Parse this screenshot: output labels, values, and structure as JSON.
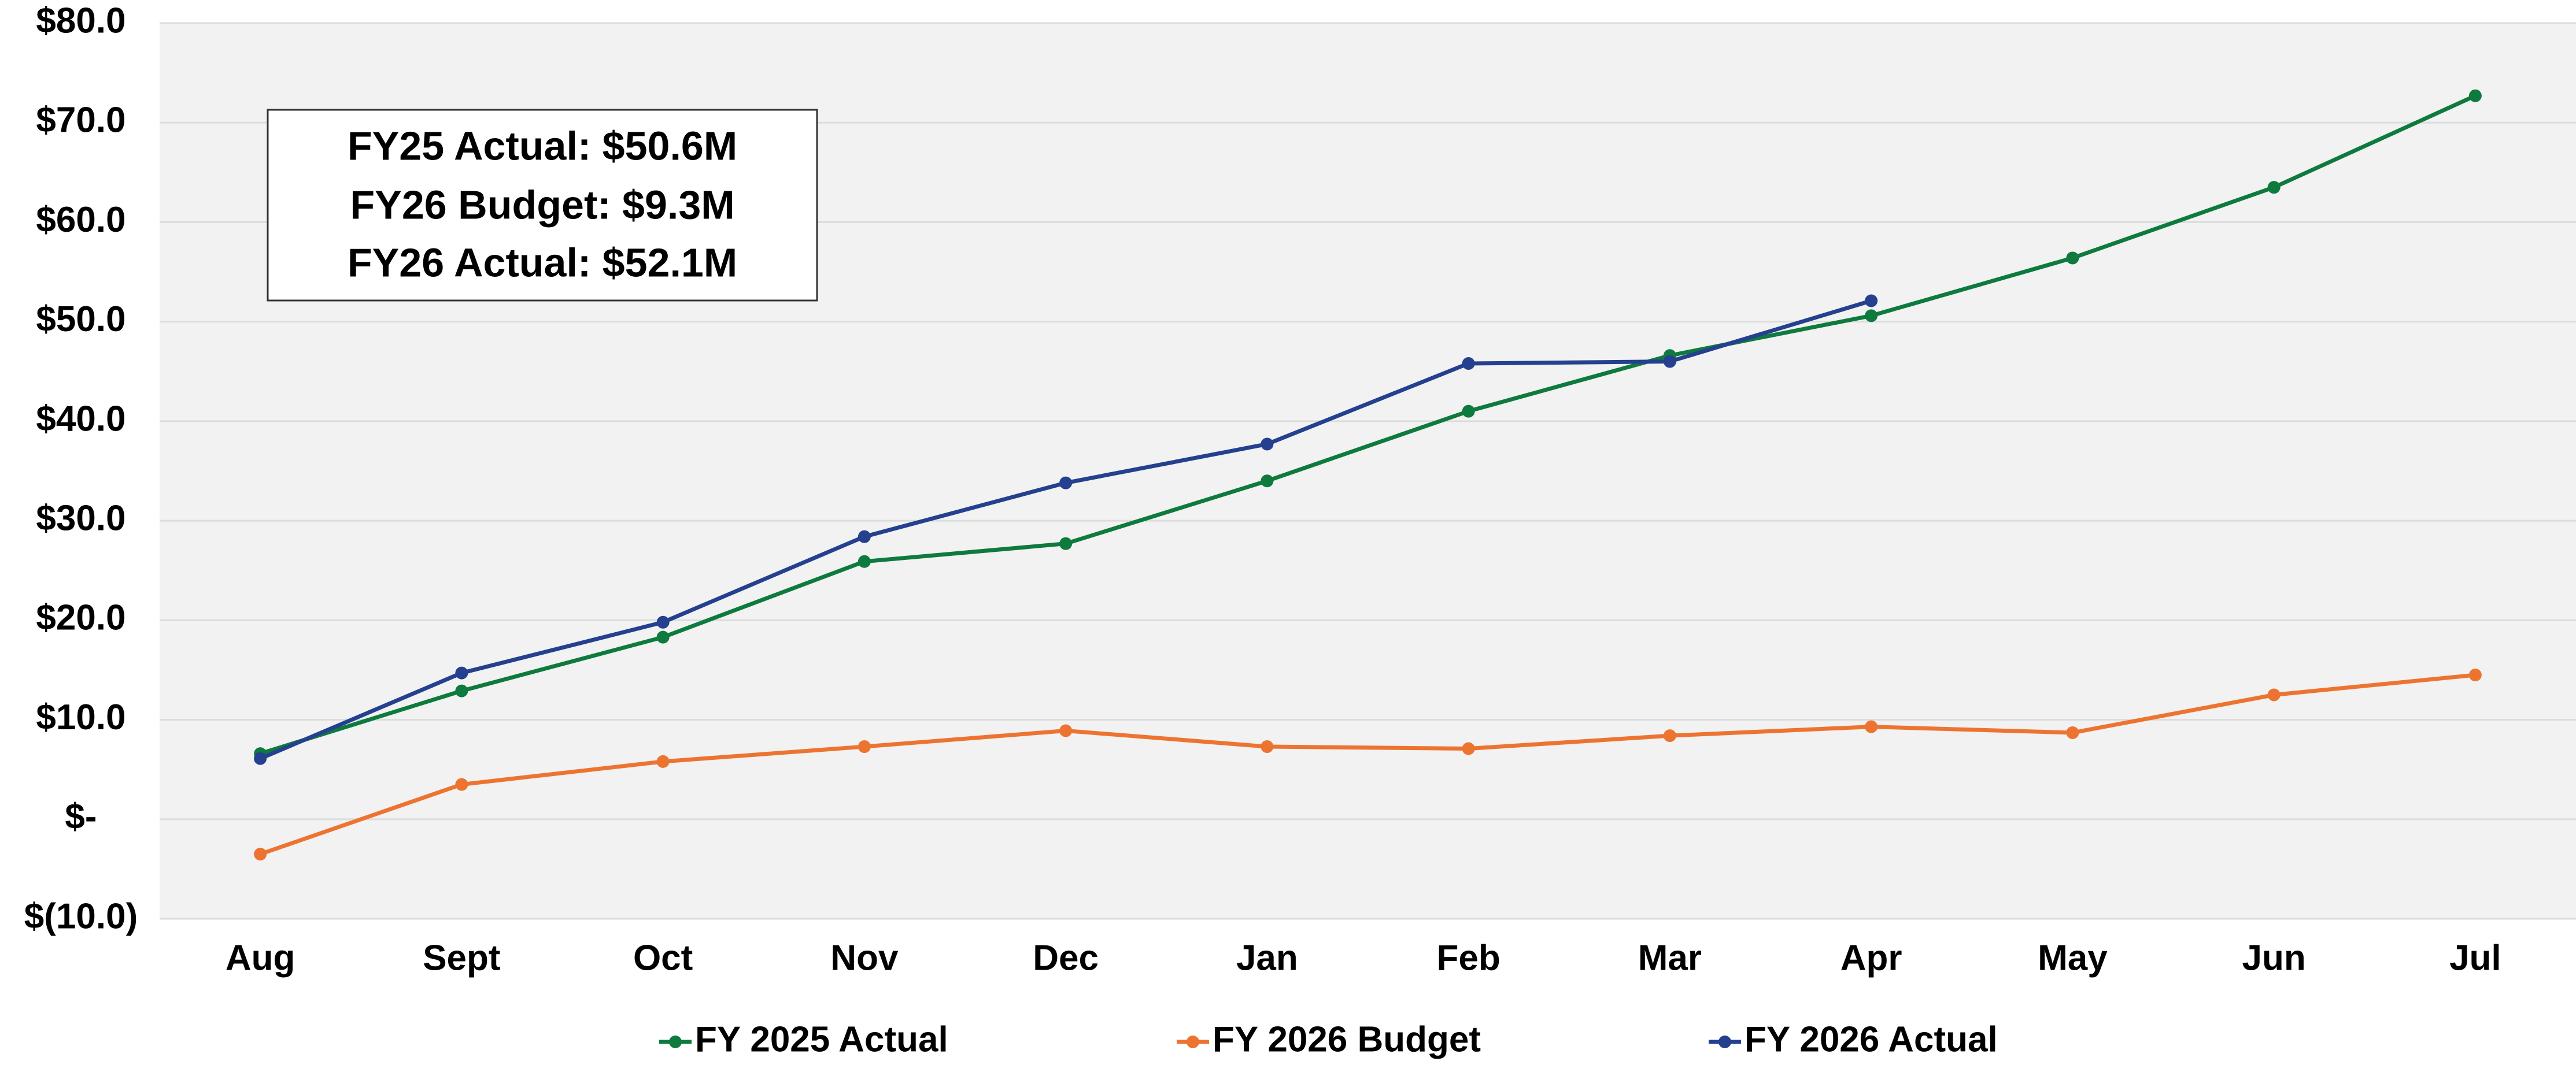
{
  "chart_data": {
    "type": "line",
    "categories": [
      "Aug",
      "Sept",
      "Oct",
      "Nov",
      "Dec",
      "Jan",
      "Feb",
      "Mar",
      "Apr",
      "May",
      "Jun",
      "Jul"
    ],
    "series": [
      {
        "name": "FY 2025 Actual",
        "color": "#0e7a3e",
        "values": [
          6.6,
          12.9,
          18.3,
          25.9,
          27.7,
          34.0,
          41.0,
          46.6,
          50.6,
          56.4,
          63.5,
          72.7
        ]
      },
      {
        "name": "FY 2026 Budget",
        "color": "#ed7430",
        "values": [
          -3.5,
          3.5,
          5.8,
          7.3,
          8.9,
          7.3,
          7.1,
          8.4,
          9.3,
          8.7,
          12.5,
          14.5
        ]
      },
      {
        "name": "FY 2026 Actual",
        "color": "#24408e",
        "values": [
          6.1,
          14.7,
          19.8,
          28.4,
          33.8,
          37.7,
          45.8,
          46.0,
          52.1,
          null,
          null,
          null
        ]
      }
    ],
    "annotations": [
      "FY25 Actual: $50.6M",
      "FY26 Budget: $9.3M",
      "FY26 Actual: $52.1M"
    ],
    "ylim": [
      -10,
      80
    ],
    "yticks": [
      {
        "value": -10,
        "label": "$(10.0)"
      },
      {
        "value": 0,
        "label": "$-"
      },
      {
        "value": 10,
        "label": "$10.0"
      },
      {
        "value": 20,
        "label": "$20.0"
      },
      {
        "value": 30,
        "label": "$30.0"
      },
      {
        "value": 40,
        "label": "$40.0"
      },
      {
        "value": 50,
        "label": "$50.0"
      },
      {
        "value": 60,
        "label": "$60.0"
      },
      {
        "value": 70,
        "label": "$70.0"
      },
      {
        "value": 80,
        "label": "$80.0"
      }
    ],
    "grid": true,
    "legend": "bottom"
  }
}
